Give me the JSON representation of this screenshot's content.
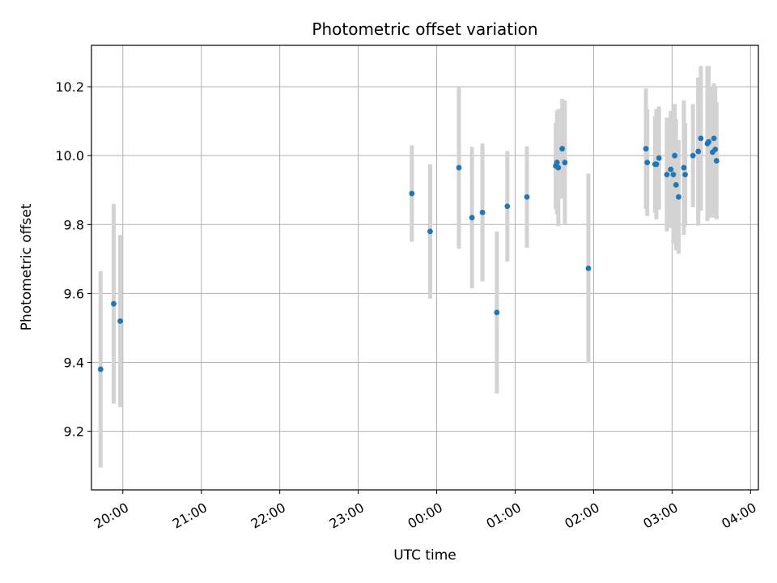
{
  "chart_data": {
    "type": "scatter",
    "title": "Photometric offset variation",
    "xlabel": "UTC time",
    "ylabel": "Photometric offset",
    "x_ticks": [
      "20:00",
      "21:00",
      "22:00",
      "23:00",
      "00:00",
      "01:00",
      "02:00",
      "03:00",
      "04:00"
    ],
    "y_ticks": [
      "9.2",
      "9.4",
      "9.6",
      "9.8",
      "10.0",
      "10.2"
    ],
    "xlim": [
      "19:36",
      "04:06"
    ],
    "ylim": [
      9.03,
      10.32
    ],
    "grid": true,
    "point_color": "#1f77b4",
    "errorbar_color": "#d3d3d3",
    "points": [
      {
        "x": "19:43",
        "y": 9.38,
        "err": 0.285
      },
      {
        "x": "19:53",
        "y": 9.57,
        "err": 0.29
      },
      {
        "x": "19:58",
        "y": 9.52,
        "err": 0.25
      },
      {
        "x": "23:41",
        "y": 9.89,
        "err": 0.14
      },
      {
        "x": "23:55",
        "y": 9.78,
        "err": 0.195
      },
      {
        "x": "00:17",
        "y": 9.965,
        "err": 0.235
      },
      {
        "x": "00:27",
        "y": 9.82,
        "err": 0.205
      },
      {
        "x": "00:35",
        "y": 9.835,
        "err": 0.2
      },
      {
        "x": "00:46",
        "y": 9.545,
        "err": 0.235
      },
      {
        "x": "00:54",
        "y": 9.853,
        "err": 0.16
      },
      {
        "x": "01:09",
        "y": 9.88,
        "err": 0.147
      },
      {
        "x": "01:31",
        "y": 9.97,
        "err": 0.125
      },
      {
        "x": "01:32",
        "y": 9.98,
        "err": 0.15
      },
      {
        "x": "01:33",
        "y": 9.965,
        "err": 0.17
      },
      {
        "x": "01:36",
        "y": 10.02,
        "err": 0.145
      },
      {
        "x": "01:38",
        "y": 9.98,
        "err": 0.18
      },
      {
        "x": "01:56",
        "y": 9.673,
        "err": 0.275
      },
      {
        "x": "02:40",
        "y": 10.02,
        "err": 0.175
      },
      {
        "x": "02:41",
        "y": 9.98,
        "err": 0.155
      },
      {
        "x": "02:47",
        "y": 9.975,
        "err": 0.14
      },
      {
        "x": "02:48",
        "y": 9.975,
        "err": 0.16
      },
      {
        "x": "02:50",
        "y": 9.993,
        "err": 0.15
      },
      {
        "x": "02:56",
        "y": 9.945,
        "err": 0.165
      },
      {
        "x": "02:59",
        "y": 9.96,
        "err": 0.17
      },
      {
        "x": "03:01",
        "y": 9.945,
        "err": 0.2
      },
      {
        "x": "03:02",
        "y": 10.0,
        "err": 0.15
      },
      {
        "x": "03:03",
        "y": 9.915,
        "err": 0.19
      },
      {
        "x": "03:05",
        "y": 9.88,
        "err": 0.165
      },
      {
        "x": "03:09",
        "y": 9.965,
        "err": 0.195
      },
      {
        "x": "03:10",
        "y": 9.945,
        "err": 0.15
      },
      {
        "x": "03:16",
        "y": 10.0,
        "err": 0.15
      },
      {
        "x": "03:20",
        "y": 10.012,
        "err": 0.215
      },
      {
        "x": "03:22",
        "y": 10.05,
        "err": 0.21
      },
      {
        "x": "03:27",
        "y": 10.035,
        "err": 0.225
      },
      {
        "x": "03:28",
        "y": 10.04,
        "err": 0.22
      },
      {
        "x": "03:31",
        "y": 10.01,
        "err": 0.19
      },
      {
        "x": "03:32",
        "y": 10.05,
        "err": 0.16
      },
      {
        "x": "03:33",
        "y": 10.018,
        "err": 0.18
      },
      {
        "x": "03:34",
        "y": 9.985,
        "err": 0.17
      }
    ]
  }
}
